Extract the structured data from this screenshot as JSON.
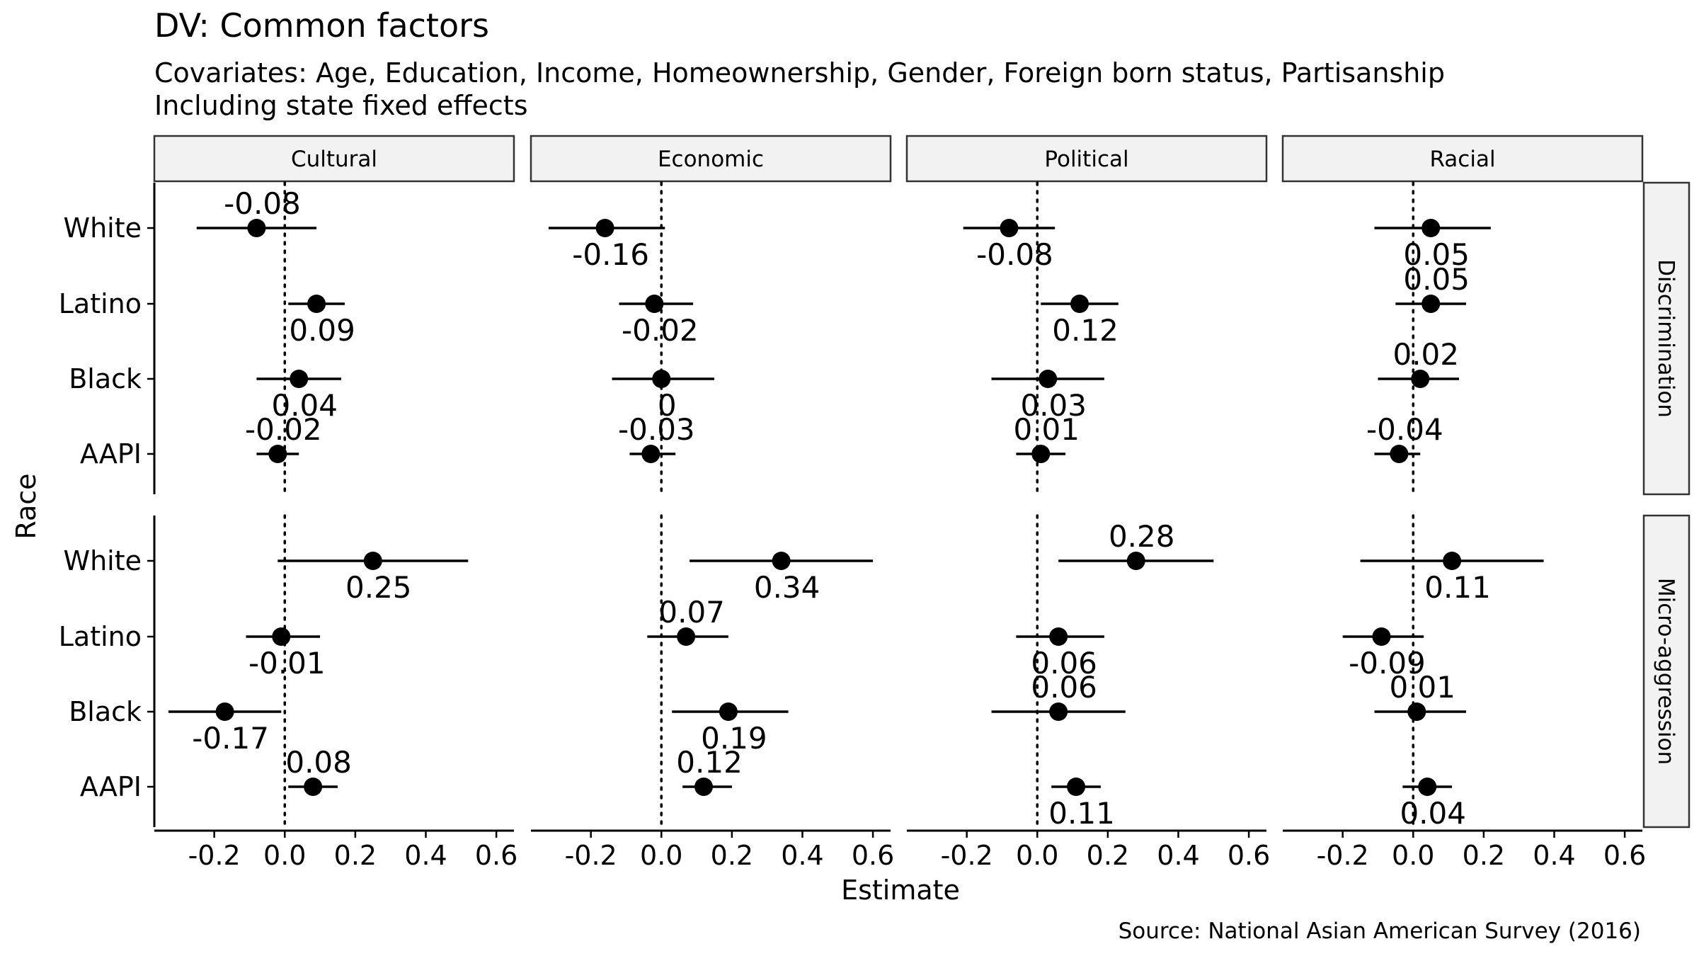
{
  "chart_data": {
    "type": "scatter",
    "title": "DV: Common factors",
    "subtitle_lines": [
      "Covariates: Age, Education, Income, Homeownership, Gender, Foreign born status, Partisanship",
      "Including state fixed effects"
    ],
    "xlabel": "Estimate",
    "ylabel": "Race",
    "caption": "Source: National Asian American Survey (2016)",
    "xlim": [
      -0.37,
      0.65
    ],
    "x_ticks": [
      -0.2,
      0.0,
      0.2,
      0.4,
      0.6
    ],
    "x_tick_labels": [
      "-0.2",
      "0.0",
      "0.2",
      "0.4",
      "0.6"
    ],
    "reference_line_x": 0,
    "categories": [
      "White",
      "Latino",
      "Black",
      "AAPI"
    ],
    "facet_columns": [
      "Cultural",
      "Economic",
      "Political",
      "Racial"
    ],
    "facet_rows": [
      "Discrimination",
      "Micro-aggression"
    ],
    "panels": [
      {
        "row": "Discrimination",
        "col": "Cultural",
        "points": [
          {
            "race": "White",
            "estimate": -0.08,
            "lo": -0.25,
            "hi": 0.09,
            "label": "-0.08",
            "label_pos": "above"
          },
          {
            "race": "Latino",
            "estimate": 0.09,
            "lo": 0.01,
            "hi": 0.17,
            "label": "0.09",
            "label_pos": "below"
          },
          {
            "race": "Black",
            "estimate": 0.04,
            "lo": -0.08,
            "hi": 0.16,
            "label": "0.04",
            "label_pos": "below"
          },
          {
            "race": "AAPI",
            "estimate": -0.02,
            "lo": -0.08,
            "hi": 0.04,
            "label": "-0.02",
            "label_pos": "above"
          }
        ]
      },
      {
        "row": "Discrimination",
        "col": "Economic",
        "points": [
          {
            "race": "White",
            "estimate": -0.16,
            "lo": -0.32,
            "hi": 0.01,
            "label": "-0.16",
            "label_pos": "below"
          },
          {
            "race": "Latino",
            "estimate": -0.02,
            "lo": -0.12,
            "hi": 0.09,
            "label": "-0.02",
            "label_pos": "below"
          },
          {
            "race": "Black",
            "estimate": 0.0,
            "lo": -0.14,
            "hi": 0.15,
            "label": "0",
            "label_pos": "below"
          },
          {
            "race": "AAPI",
            "estimate": -0.03,
            "lo": -0.09,
            "hi": 0.04,
            "label": "-0.03",
            "label_pos": "above"
          }
        ]
      },
      {
        "row": "Discrimination",
        "col": "Political",
        "points": [
          {
            "race": "White",
            "estimate": -0.08,
            "lo": -0.21,
            "hi": 0.05,
            "label": "-0.08",
            "label_pos": "below"
          },
          {
            "race": "Latino",
            "estimate": 0.12,
            "lo": 0.01,
            "hi": 0.23,
            "label": "0.12",
            "label_pos": "below"
          },
          {
            "race": "Black",
            "estimate": 0.03,
            "lo": -0.13,
            "hi": 0.19,
            "label": "0.03",
            "label_pos": "below"
          },
          {
            "race": "AAPI",
            "estimate": 0.01,
            "lo": -0.06,
            "hi": 0.08,
            "label": "0.01",
            "label_pos": "above"
          }
        ]
      },
      {
        "row": "Discrimination",
        "col": "Racial",
        "points": [
          {
            "race": "White",
            "estimate": 0.05,
            "lo": -0.11,
            "hi": 0.22,
            "label": "0.05",
            "label_pos": "below"
          },
          {
            "race": "Latino",
            "estimate": 0.05,
            "lo": -0.05,
            "hi": 0.15,
            "label": "0.05",
            "label_pos": "above"
          },
          {
            "race": "Black",
            "estimate": 0.02,
            "lo": -0.1,
            "hi": 0.13,
            "label": "0.02",
            "label_pos": "above"
          },
          {
            "race": "AAPI",
            "estimate": -0.04,
            "lo": -0.11,
            "hi": 0.02,
            "label": "-0.04",
            "label_pos": "above"
          }
        ]
      },
      {
        "row": "Micro-aggression",
        "col": "Cultural",
        "points": [
          {
            "race": "White",
            "estimate": 0.25,
            "lo": -0.02,
            "hi": 0.52,
            "label": "0.25",
            "label_pos": "below"
          },
          {
            "race": "Latino",
            "estimate": -0.01,
            "lo": -0.11,
            "hi": 0.1,
            "label": "-0.01",
            "label_pos": "below"
          },
          {
            "race": "Black",
            "estimate": -0.17,
            "lo": -0.33,
            "hi": -0.01,
            "label": "-0.17",
            "label_pos": "below"
          },
          {
            "race": "AAPI",
            "estimate": 0.08,
            "lo": 0.01,
            "hi": 0.15,
            "label": "0.08",
            "label_pos": "above"
          }
        ]
      },
      {
        "row": "Micro-aggression",
        "col": "Economic",
        "points": [
          {
            "race": "White",
            "estimate": 0.34,
            "lo": 0.08,
            "hi": 0.6,
            "label": "0.34",
            "label_pos": "below"
          },
          {
            "race": "Latino",
            "estimate": 0.07,
            "lo": -0.04,
            "hi": 0.19,
            "label": "0.07",
            "label_pos": "above"
          },
          {
            "race": "Black",
            "estimate": 0.19,
            "lo": 0.03,
            "hi": 0.36,
            "label": "0.19",
            "label_pos": "below"
          },
          {
            "race": "AAPI",
            "estimate": 0.12,
            "lo": 0.06,
            "hi": 0.2,
            "label": "0.12",
            "label_pos": "above"
          }
        ]
      },
      {
        "row": "Micro-aggression",
        "col": "Political",
        "points": [
          {
            "race": "White",
            "estimate": 0.28,
            "lo": 0.06,
            "hi": 0.5,
            "label": "0.28",
            "label_pos": "above"
          },
          {
            "race": "Latino",
            "estimate": 0.06,
            "lo": -0.06,
            "hi": 0.19,
            "label": "0.06",
            "label_pos": "below"
          },
          {
            "race": "Black",
            "estimate": 0.06,
            "lo": -0.13,
            "hi": 0.25,
            "label": "0.06",
            "label_pos": "above"
          },
          {
            "race": "AAPI",
            "estimate": 0.11,
            "lo": 0.04,
            "hi": 0.18,
            "label": "0.11",
            "label_pos": "below"
          }
        ]
      },
      {
        "row": "Micro-aggression",
        "col": "Racial",
        "points": [
          {
            "race": "White",
            "estimate": 0.11,
            "lo": -0.15,
            "hi": 0.37,
            "label": "0.11",
            "label_pos": "below"
          },
          {
            "race": "Latino",
            "estimate": -0.09,
            "lo": -0.2,
            "hi": 0.03,
            "label": "-0.09",
            "label_pos": "below"
          },
          {
            "race": "Black",
            "estimate": 0.01,
            "lo": -0.11,
            "hi": 0.15,
            "label": "0.01",
            "label_pos": "above"
          },
          {
            "race": "AAPI",
            "estimate": 0.04,
            "lo": -0.03,
            "hi": 0.11,
            "label": "0.04",
            "label_pos": "below"
          }
        ]
      }
    ],
    "point_color": "#000000",
    "strip_fill": "#f2f2f2",
    "grid": false
  }
}
